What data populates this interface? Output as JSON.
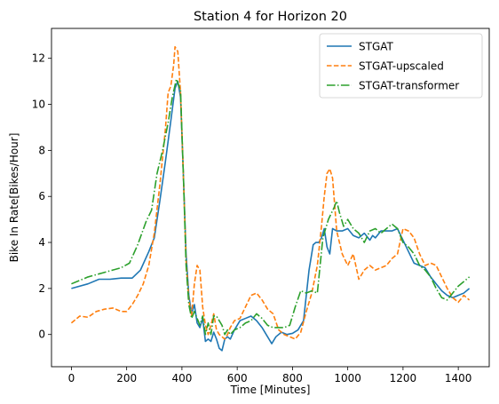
{
  "chart_data": {
    "type": "line",
    "title": "Station 4 for Horizon 20",
    "xlabel": "Time [Minutes]",
    "ylabel": "Bike In Rate[Bikes/Hour]",
    "xlim": [
      -72,
      1512
    ],
    "ylim": [
      -1.4,
      13.3
    ],
    "xticks": [
      0,
      200,
      400,
      600,
      800,
      1000,
      1200,
      1400
    ],
    "yticks": [
      0,
      2,
      4,
      6,
      8,
      10,
      12
    ],
    "grid": false,
    "legend_position": "top-right",
    "series": [
      {
        "name": "STGAT",
        "color": "#1f77b4",
        "dash": "solid",
        "x": [
          0,
          60,
          100,
          140,
          180,
          220,
          250,
          280,
          300,
          320,
          340,
          360,
          375,
          385,
          395,
          405,
          415,
          425,
          435,
          445,
          455,
          465,
          475,
          485,
          495,
          505,
          515,
          525,
          535,
          545,
          555,
          565,
          575,
          590,
          610,
          630,
          650,
          670,
          690,
          710,
          725,
          740,
          760,
          780,
          800,
          820,
          840,
          860,
          875,
          885,
          895,
          905,
          915,
          925,
          935,
          945,
          960,
          980,
          1000,
          1020,
          1040,
          1060,
          1080,
          1090,
          1100,
          1120,
          1140,
          1160,
          1180,
          1200,
          1220,
          1240,
          1260,
          1280,
          1300,
          1320,
          1340,
          1360,
          1380,
          1400,
          1420,
          1440
        ],
        "y": [
          2.0,
          2.2,
          2.4,
          2.4,
          2.45,
          2.45,
          2.8,
          3.6,
          4.2,
          5.8,
          7.5,
          9.3,
          10.7,
          11.0,
          10.3,
          7.0,
          3.5,
          1.7,
          0.9,
          1.3,
          0.5,
          0.3,
          0.7,
          -0.3,
          -0.2,
          -0.3,
          0.1,
          -0.2,
          -0.6,
          -0.7,
          -0.2,
          -0.1,
          -0.2,
          0.2,
          0.6,
          0.7,
          0.8,
          0.6,
          0.3,
          -0.1,
          -0.4,
          -0.1,
          0.1,
          0.0,
          0.05,
          0.2,
          0.6,
          2.8,
          3.9,
          4.0,
          4.0,
          4.2,
          4.6,
          3.8,
          3.5,
          4.6,
          4.5,
          4.5,
          4.6,
          4.3,
          4.2,
          4.4,
          4.1,
          4.3,
          4.2,
          4.5,
          4.5,
          4.5,
          4.6,
          4.1,
          3.6,
          3.1,
          3.0,
          2.9,
          2.5,
          2.2,
          1.9,
          1.7,
          1.6,
          1.7,
          1.8,
          2.0
        ]
      },
      {
        "name": "STGAT-upscaled",
        "color": "#ff7f0e",
        "dash": "dashed",
        "x": [
          0,
          30,
          60,
          90,
          120,
          150,
          180,
          200,
          220,
          240,
          260,
          280,
          300,
          320,
          340,
          350,
          360,
          370,
          375,
          385,
          395,
          405,
          415,
          425,
          435,
          445,
          455,
          465,
          475,
          485,
          495,
          505,
          515,
          525,
          535,
          545,
          555,
          565,
          575,
          590,
          610,
          630,
          650,
          670,
          690,
          710,
          730,
          750,
          770,
          790,
          810,
          830,
          850,
          870,
          890,
          905,
          915,
          925,
          935,
          945,
          960,
          980,
          1000,
          1020,
          1040,
          1060,
          1080,
          1100,
          1120,
          1140,
          1160,
          1180,
          1200,
          1220,
          1240,
          1260,
          1280,
          1300,
          1320,
          1340,
          1360,
          1380,
          1400,
          1420,
          1440
        ],
        "y": [
          0.5,
          0.8,
          0.75,
          1.0,
          1.1,
          1.15,
          1.0,
          1.0,
          1.3,
          1.7,
          2.2,
          3.0,
          4.4,
          6.5,
          8.9,
          10.5,
          10.8,
          11.7,
          12.5,
          12.3,
          10.5,
          7.0,
          3.2,
          1.5,
          0.8,
          2.2,
          3.0,
          2.8,
          1.2,
          0.4,
          0.0,
          0.4,
          0.9,
          0.2,
          0.0,
          -0.1,
          -0.2,
          0.0,
          0.3,
          0.6,
          0.7,
          1.2,
          1.7,
          1.8,
          1.5,
          1.1,
          0.9,
          0.2,
          0.0,
          -0.1,
          -0.2,
          0.1,
          1.0,
          1.8,
          3.0,
          4.7,
          6.0,
          7.0,
          7.2,
          6.8,
          4.5,
          3.5,
          3.0,
          3.5,
          2.4,
          2.8,
          3.0,
          2.8,
          2.9,
          3.0,
          3.3,
          3.5,
          4.6,
          4.5,
          4.2,
          3.5,
          3.0,
          3.1,
          3.0,
          2.5,
          2.0,
          1.6,
          1.4,
          1.7,
          1.5
        ]
      },
      {
        "name": "STGAT-transformer",
        "color": "#2ca02c",
        "dash": "dashdot",
        "x": [
          0,
          30,
          60,
          90,
          120,
          150,
          180,
          210,
          240,
          270,
          290,
          310,
          330,
          350,
          365,
          380,
          395,
          405,
          415,
          425,
          435,
          445,
          455,
          465,
          475,
          485,
          495,
          505,
          515,
          525,
          535,
          545,
          555,
          565,
          575,
          590,
          610,
          630,
          650,
          670,
          690,
          710,
          730,
          750,
          770,
          790,
          810,
          830,
          850,
          870,
          890,
          910,
          930,
          950,
          960,
          970,
          985,
          1000,
          1020,
          1040,
          1060,
          1080,
          1100,
          1120,
          1140,
          1160,
          1180,
          1200,
          1220,
          1240,
          1260,
          1280,
          1300,
          1320,
          1340,
          1360,
          1380,
          1400,
          1420,
          1440
        ],
        "y": [
          2.2,
          2.35,
          2.5,
          2.6,
          2.7,
          2.8,
          2.9,
          3.1,
          3.9,
          4.9,
          5.4,
          7.0,
          8.0,
          9.2,
          10.3,
          11.1,
          10.6,
          7.0,
          3.0,
          1.3,
          0.7,
          1.0,
          0.7,
          0.4,
          0.8,
          0.0,
          0.5,
          0.0,
          0.8,
          0.8,
          0.6,
          0.4,
          0.0,
          0.2,
          0.0,
          0.2,
          0.3,
          0.5,
          0.6,
          0.9,
          0.7,
          0.4,
          0.3,
          0.3,
          0.3,
          0.4,
          1.2,
          1.9,
          1.8,
          1.9,
          1.8,
          4.2,
          5.0,
          5.5,
          5.8,
          5.3,
          4.7,
          5.0,
          4.6,
          4.4,
          4.0,
          4.5,
          4.6,
          4.4,
          4.6,
          4.8,
          4.6,
          4.0,
          3.8,
          3.5,
          3.0,
          2.8,
          2.5,
          2.0,
          1.6,
          1.5,
          1.8,
          2.1,
          2.3,
          2.5
        ]
      }
    ]
  }
}
